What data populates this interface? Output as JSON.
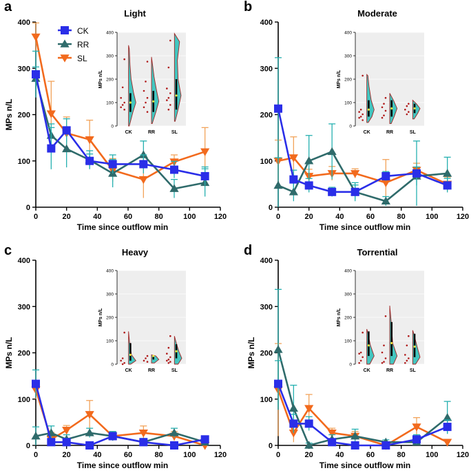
{
  "figure": {
    "colors": {
      "CK": "#2a2ee8",
      "RR": "#2f6b6b",
      "SL": "#f26a1d",
      "ckErr": "#25b0b0",
      "rrErr": "#25b0b0",
      "slErr": "#f2a35a",
      "violin": "#42c6c0",
      "violinEdge": "#a02626"
    }
  },
  "chart_data": [
    {
      "type": "line",
      "panel": "a",
      "title": "Light",
      "xlabel": "Time since outflow min",
      "ylabel": "MPs n/L",
      "xlim": [
        0,
        120
      ],
      "ylim": [
        0,
        400
      ],
      "xticks": [
        "0",
        "20",
        "40",
        "60",
        "80",
        "100",
        "120"
      ],
      "yticks": [
        "0",
        "100",
        "200",
        "300",
        "400"
      ],
      "legend": [
        "CK",
        "RR",
        "SL"
      ],
      "series": [
        {
          "name": "SL",
          "x": [
            0,
            10,
            20,
            35,
            50,
            70,
            90,
            110
          ],
          "y": [
            368,
            202,
            160,
            146,
            80,
            60,
            98,
            120
          ],
          "err": [
            30,
            70,
            35,
            42,
            25,
            40,
            15,
            52
          ]
        },
        {
          "name": "RR",
          "x": [
            0,
            10,
            20,
            35,
            50,
            70,
            90,
            110
          ],
          "y": [
            278,
            155,
            126,
            102,
            73,
            113,
            40,
            53
          ],
          "err": [
            25,
            25,
            40,
            20,
            30,
            30,
            20,
            30
          ]
        },
        {
          "name": "CK",
          "x": [
            0,
            10,
            20,
            35,
            50,
            70,
            90,
            110
          ],
          "y": [
            287,
            127,
            166,
            100,
            93,
            93,
            81,
            67
          ],
          "err": [
            50,
            45,
            25,
            15,
            20,
            20,
            18,
            20
          ]
        }
      ],
      "inset": {
        "ylabel": "MPs n/L",
        "yticks": [
          "0",
          "100",
          "200",
          "300",
          "400"
        ],
        "ylim": [
          0,
          400
        ],
        "categories": [
          "CK",
          "RR",
          "SL"
        ],
        "points": [
          [
            285,
            165,
            120,
            100,
            90,
            80,
            70
          ],
          [
            275,
            190,
            150,
            120,
            100,
            80,
            60
          ],
          [
            365,
            250,
            160,
            140,
            120,
            110,
            90,
            70
          ]
        ],
        "violins": [
          {
            "shape": [
              [
                0,
                0.1
              ],
              [
                60,
                0.6
              ],
              [
                100,
                1
              ],
              [
                140,
                0.7
              ],
              [
                200,
                0.35
              ],
              [
                260,
                0.2
              ],
              [
                330,
                0.1
              ],
              [
                345,
                0
              ]
            ]
          },
          {
            "shape": [
              [
                10,
                0.1
              ],
              [
                60,
                0.6
              ],
              [
                105,
                1
              ],
              [
                150,
                0.7
              ],
              [
                210,
                0.35
              ],
              [
                260,
                0.15
              ],
              [
                295,
                0
              ]
            ]
          },
          {
            "shape": [
              [
                20,
                0.1
              ],
              [
                70,
                0.5
              ],
              [
                130,
                0.9
              ],
              [
                200,
                0.5
              ],
              [
                280,
                0.4
              ],
              [
                360,
                0.7
              ],
              [
                395,
                0
              ]
            ]
          }
        ]
      }
    },
    {
      "type": "line",
      "panel": "b",
      "title": "Moderate",
      "xlabel": "Time since outflow  min",
      "ylabel": "",
      "xlim": [
        0,
        120
      ],
      "ylim": [
        0,
        400
      ],
      "xticks": [
        "0",
        "20",
        "40",
        "60",
        "80",
        "100",
        "120"
      ],
      "yticks": [
        "0",
        "100",
        "200",
        "300",
        "400"
      ],
      "series": [
        {
          "name": "SL",
          "x": [
            0,
            10,
            20,
            35,
            50,
            70,
            90,
            110
          ],
          "y": [
            100,
            107,
            67,
            73,
            73,
            53,
            80,
            50
          ],
          "err": [
            45,
            45,
            15,
            15,
            10,
            50,
            15,
            15
          ]
        },
        {
          "name": "RR",
          "x": [
            0,
            10,
            20,
            35,
            50,
            70,
            90,
            110
          ],
          "y": [
            47,
            33,
            100,
            120,
            33,
            13,
            67,
            73
          ],
          "err": [
            60,
            20,
            55,
            60,
            20,
            10,
            20,
            35
          ]
        },
        {
          "name": "CK",
          "x": [
            0,
            10,
            20,
            35,
            50,
            70,
            90,
            110
          ],
          "y": [
            213,
            60,
            47,
            33,
            33,
            67,
            73,
            47
          ],
          "err": [
            110,
            20,
            15,
            10,
            15,
            10,
            70,
            15
          ]
        }
      ],
      "inset": {
        "ylabel": "MPs n/L",
        "yticks": [
          "0",
          "100",
          "200",
          "300",
          "400"
        ],
        "ylim": [
          0,
          400
        ],
        "categories": [
          "CK",
          "RR",
          "SL"
        ],
        "points": [
          [
            215,
            70,
            60,
            50,
            40,
            35,
            25
          ],
          [
            120,
            95,
            80,
            65,
            45,
            35
          ],
          [
            95,
            85,
            70,
            60,
            50
          ]
        ],
        "violins": [
          {
            "shape": [
              [
                15,
                0.2
              ],
              [
                40,
                0.7
              ],
              [
                70,
                1
              ],
              [
                110,
                0.6
              ],
              [
                170,
                0.3
              ],
              [
                215,
                0.15
              ],
              [
                220,
                0
              ]
            ]
          },
          {
            "shape": [
              [
                10,
                0.2
              ],
              [
                40,
                0.6
              ],
              [
                75,
                1
              ],
              [
                110,
                0.5
              ],
              [
                140,
                0
              ]
            ]
          },
          {
            "shape": [
              [
                30,
                0.2
              ],
              [
                55,
                0.7
              ],
              [
                75,
                1
              ],
              [
                95,
                0.5
              ],
              [
                110,
                0
              ]
            ]
          }
        ]
      }
    },
    {
      "type": "line",
      "panel": "c",
      "title": "Heavy",
      "xlabel": "Time since outflow min",
      "ylabel": "MPs n/L",
      "xlim": [
        0,
        120
      ],
      "ylim": [
        0,
        400
      ],
      "xticks": [
        "0",
        "20",
        "40",
        "60",
        "80",
        "100",
        "120"
      ],
      "yticks": [
        "0",
        "100",
        "200",
        "300",
        "400"
      ],
      "series": [
        {
          "name": "SL",
          "x": [
            0,
            10,
            20,
            35,
            50,
            70,
            90,
            110
          ],
          "y": [
            120,
            13,
            33,
            67,
            20,
            27,
            20,
            0
          ],
          "err": [
            20,
            15,
            10,
            30,
            10,
            15,
            10,
            5
          ]
        },
        {
          "name": "RR",
          "x": [
            0,
            10,
            20,
            35,
            50,
            70,
            90,
            110
          ],
          "y": [
            20,
            27,
            13,
            27,
            20,
            7,
            27,
            7
          ],
          "err": [
            20,
            15,
            10,
            10,
            10,
            8,
            10,
            5
          ]
        },
        {
          "name": "CK",
          "x": [
            0,
            10,
            20,
            35,
            50,
            70,
            90,
            110
          ],
          "y": [
            133,
            7,
            7,
            0,
            20,
            7,
            0,
            13
          ],
          "err": [
            30,
            8,
            8,
            5,
            8,
            5,
            5,
            5
          ]
        }
      ],
      "inset": {
        "ylabel": "MPs n/L",
        "yticks": [
          "0",
          "100",
          "200",
          "300",
          "400"
        ],
        "ylim": [
          0,
          400
        ],
        "categories": [
          "CK",
          "RR",
          "SL"
        ],
        "points": [
          [
            135,
            25,
            15,
            5,
            0
          ],
          [
            35,
            25,
            15,
            10
          ],
          [
            120,
            70,
            45,
            30,
            20,
            15,
            10,
            5
          ]
        ],
        "violins": [
          {
            "shape": [
              [
                0,
                0.3
              ],
              [
                15,
                1
              ],
              [
                40,
                0.4
              ],
              [
                90,
                0.15
              ],
              [
                140,
                0
              ]
            ]
          },
          {
            "shape": [
              [
                5,
                0.4
              ],
              [
                20,
                1
              ],
              [
                35,
                0.6
              ],
              [
                40,
                0
              ]
            ]
          },
          {
            "shape": [
              [
                0,
                0.5
              ],
              [
                25,
                1
              ],
              [
                55,
                0.6
              ],
              [
                85,
                0.3
              ],
              [
                120,
                0
              ]
            ]
          }
        ]
      }
    },
    {
      "type": "line",
      "panel": "d",
      "title": "Torrential",
      "xlabel": "Time since outflow min",
      "ylabel": "MPs n/L",
      "xlim": [
        0,
        120
      ],
      "ylim": [
        0,
        400
      ],
      "xticks": [
        "0",
        "20",
        "40",
        "60",
        "80",
        "100",
        "120"
      ],
      "yticks": [
        "0",
        "100",
        "200",
        "300",
        "400"
      ],
      "series": [
        {
          "name": "SL",
          "x": [
            0,
            10,
            20,
            35,
            50,
            70,
            90,
            110
          ],
          "y": [
            120,
            27,
            80,
            27,
            20,
            0,
            40,
            7
          ],
          "err": [
            100,
            20,
            30,
            10,
            10,
            5,
            20,
            5
          ]
        },
        {
          "name": "RR",
          "x": [
            0,
            10,
            20,
            35,
            50,
            70,
            90,
            110
          ],
          "y": [
            207,
            80,
            0,
            13,
            20,
            7,
            7,
            60
          ],
          "err": [
            130,
            50,
            5,
            10,
            15,
            5,
            5,
            35
          ]
        },
        {
          "name": "CK",
          "x": [
            0,
            10,
            20,
            35,
            50,
            70,
            90,
            110
          ],
          "y": [
            133,
            47,
            47,
            7,
            0,
            0,
            13,
            40
          ],
          "err": [
            50,
            20,
            15,
            5,
            5,
            5,
            10,
            15
          ]
        }
      ],
      "inset": {
        "ylabel": "MPs n/L",
        "yticks": [
          "0",
          "100",
          "200",
          "300",
          "400"
        ],
        "ylim": [
          0,
          400
        ],
        "categories": [
          "CK",
          "RR",
          "SL"
        ],
        "points": [
          [
            135,
            50,
            45,
            30,
            15,
            5
          ],
          [
            205,
            80,
            50,
            25,
            10,
            5
          ],
          [
            120,
            80,
            40,
            25,
            15,
            5
          ]
        ],
        "violins": [
          {
            "shape": [
              [
                0,
                0.4
              ],
              [
                35,
                1
              ],
              [
                80,
                0.5
              ],
              [
                140,
                0.1
              ],
              [
                150,
                0
              ]
            ]
          },
          {
            "shape": [
              [
                0,
                0.5
              ],
              [
                35,
                1
              ],
              [
                90,
                0.4
              ],
              [
                180,
                0.2
              ],
              [
                250,
                0
              ]
            ]
          },
          {
            "shape": [
              [
                0,
                0.4
              ],
              [
                30,
                1
              ],
              [
                75,
                0.6
              ],
              [
                130,
                0.15
              ],
              [
                145,
                0
              ]
            ]
          }
        ]
      }
    }
  ]
}
